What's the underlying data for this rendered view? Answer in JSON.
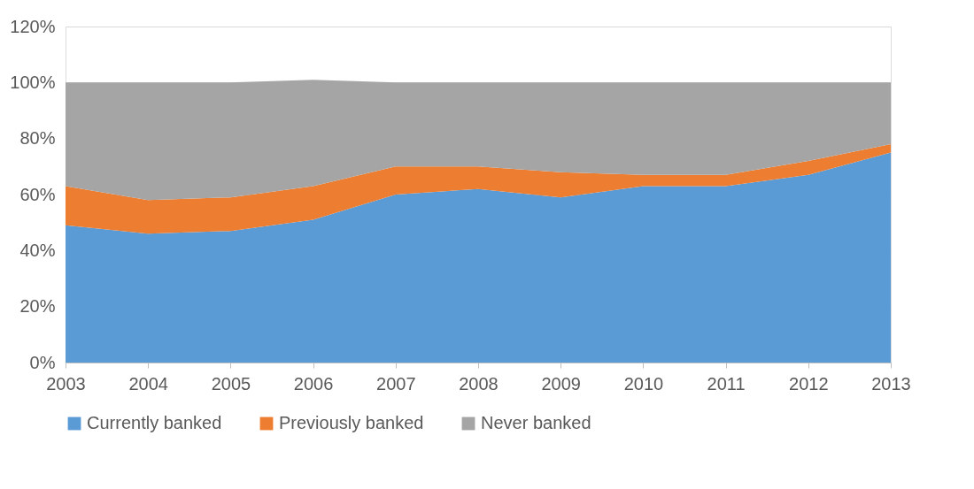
{
  "chart_data": {
    "type": "area",
    "stacked": true,
    "categories": [
      "2003",
      "2004",
      "2005",
      "2006",
      "2007",
      "2008",
      "2009",
      "2010",
      "2011",
      "2012",
      "2013"
    ],
    "series": [
      {
        "name": "Currently banked",
        "color": "#5b9bd5",
        "values": [
          49,
          46,
          47,
          51,
          60,
          62,
          59,
          63,
          63,
          67,
          75
        ]
      },
      {
        "name": "Previously banked",
        "color": "#ed7d31",
        "values": [
          14,
          12,
          12,
          12,
          10,
          8,
          9,
          4,
          4,
          5,
          3
        ]
      },
      {
        "name": "Never banked",
        "color": "#a5a5a5",
        "values": [
          37,
          42,
          41,
          38,
          30,
          30,
          32,
          33,
          33,
          28,
          22
        ]
      }
    ],
    "ylim": [
      0,
      120
    ],
    "yticks": [
      {
        "value": 0,
        "label": "0%"
      },
      {
        "value": 20,
        "label": "20%"
      },
      {
        "value": 40,
        "label": "40%"
      },
      {
        "value": 60,
        "label": "60%"
      },
      {
        "value": 80,
        "label": "80%"
      },
      {
        "value": 100,
        "label": "100%"
      },
      {
        "value": 120,
        "label": "120%"
      }
    ],
    "grid": "y",
    "legend": "bottom"
  }
}
